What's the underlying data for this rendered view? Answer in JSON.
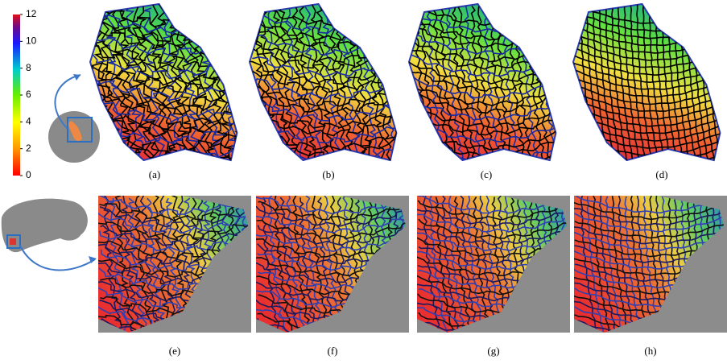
{
  "colorbar": {
    "range": [
      0,
      12
    ],
    "ticks": [
      0,
      2,
      4,
      6,
      8,
      10,
      12
    ]
  },
  "panels": {
    "top": [
      "(a)",
      "(b)",
      "(c)",
      "(d)"
    ],
    "bottom": [
      "(e)",
      "(f)",
      "(g)",
      "(h)"
    ]
  }
}
